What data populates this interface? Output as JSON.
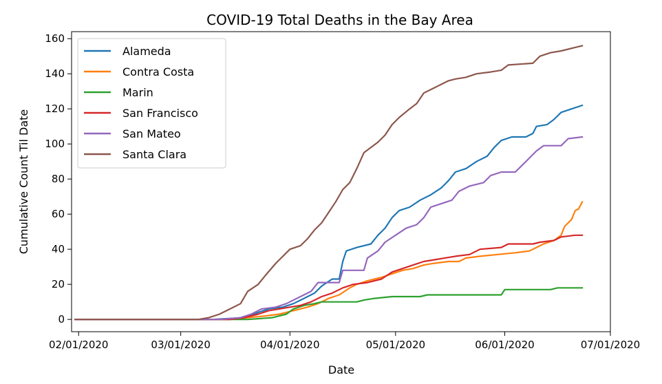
{
  "chart_data": {
    "type": "line",
    "title": "COVID-19 Total Deaths in the Bay Area",
    "xlabel": "Date",
    "ylabel": "Cumulative Count Til Date",
    "x_range": [
      "2020-01-30",
      "2020-07-01"
    ],
    "ylim": [
      -7,
      164
    ],
    "x_ticks": [
      {
        "date": "2020-02-01",
        "label": "02/01/2020"
      },
      {
        "date": "2020-03-01",
        "label": "03/01/2020"
      },
      {
        "date": "2020-04-01",
        "label": "04/01/2020"
      },
      {
        "date": "2020-05-01",
        "label": "05/01/2020"
      },
      {
        "date": "2020-06-01",
        "label": "06/01/2020"
      },
      {
        "date": "2020-07-01",
        "label": "07/01/2020"
      }
    ],
    "y_ticks": [
      0,
      20,
      40,
      60,
      80,
      100,
      120,
      140,
      160
    ],
    "grid": false,
    "legend_position": "top-left",
    "series": [
      {
        "name": "Alameda",
        "color": "#1f77b4",
        "points": [
          [
            "2020-01-31",
            0
          ],
          [
            "2020-03-10",
            0
          ],
          [
            "2020-03-19",
            1
          ],
          [
            "2020-03-23",
            4
          ],
          [
            "2020-03-26",
            6
          ],
          [
            "2020-03-30",
            7
          ],
          [
            "2020-04-02",
            9
          ],
          [
            "2020-04-05",
            12
          ],
          [
            "2020-04-08",
            15
          ],
          [
            "2020-04-10",
            19
          ],
          [
            "2020-04-13",
            23
          ],
          [
            "2020-04-15",
            23
          ],
          [
            "2020-04-16",
            33
          ],
          [
            "2020-04-17",
            39
          ],
          [
            "2020-04-20",
            41
          ],
          [
            "2020-04-24",
            43
          ],
          [
            "2020-04-26",
            48
          ],
          [
            "2020-04-28",
            52
          ],
          [
            "2020-04-30",
            58
          ],
          [
            "2020-05-02",
            62
          ],
          [
            "2020-05-05",
            64
          ],
          [
            "2020-05-08",
            68
          ],
          [
            "2020-05-11",
            71
          ],
          [
            "2020-05-14",
            75
          ],
          [
            "2020-05-16",
            79
          ],
          [
            "2020-05-18",
            84
          ],
          [
            "2020-05-21",
            86
          ],
          [
            "2020-05-24",
            90
          ],
          [
            "2020-05-27",
            93
          ],
          [
            "2020-05-29",
            98
          ],
          [
            "2020-05-31",
            102
          ],
          [
            "2020-06-03",
            104
          ],
          [
            "2020-06-07",
            104
          ],
          [
            "2020-06-09",
            106
          ],
          [
            "2020-06-10",
            110
          ],
          [
            "2020-06-13",
            111
          ],
          [
            "2020-06-15",
            114
          ],
          [
            "2020-06-17",
            118
          ],
          [
            "2020-06-20",
            120
          ],
          [
            "2020-06-23",
            122
          ]
        ]
      },
      {
        "name": "Contra Costa",
        "color": "#ff7f0e",
        "points": [
          [
            "2020-01-31",
            0
          ],
          [
            "2020-03-15",
            0
          ],
          [
            "2020-03-25",
            2
          ],
          [
            "2020-03-29",
            3
          ],
          [
            "2020-04-02",
            5
          ],
          [
            "2020-04-06",
            7
          ],
          [
            "2020-04-09",
            9
          ],
          [
            "2020-04-12",
            12
          ],
          [
            "2020-04-15",
            14
          ],
          [
            "2020-04-18",
            18
          ],
          [
            "2020-04-20",
            20
          ],
          [
            "2020-04-23",
            22
          ],
          [
            "2020-04-27",
            24
          ],
          [
            "2020-04-30",
            26
          ],
          [
            "2020-05-03",
            28
          ],
          [
            "2020-05-06",
            29
          ],
          [
            "2020-05-09",
            31
          ],
          [
            "2020-05-12",
            32
          ],
          [
            "2020-05-16",
            33
          ],
          [
            "2020-05-19",
            33
          ],
          [
            "2020-05-21",
            35
          ],
          [
            "2020-05-25",
            36
          ],
          [
            "2020-05-30",
            37
          ],
          [
            "2020-06-04",
            38
          ],
          [
            "2020-06-08",
            39
          ],
          [
            "2020-06-10",
            41
          ],
          [
            "2020-06-12",
            43
          ],
          [
            "2020-06-15",
            45
          ],
          [
            "2020-06-17",
            48
          ],
          [
            "2020-06-18",
            53
          ],
          [
            "2020-06-20",
            57
          ],
          [
            "2020-06-21",
            62
          ],
          [
            "2020-06-22",
            63
          ],
          [
            "2020-06-23",
            67
          ]
        ]
      },
      {
        "name": "Marin",
        "color": "#2ca02c",
        "points": [
          [
            "2020-01-31",
            0
          ],
          [
            "2020-03-20",
            0
          ],
          [
            "2020-03-27",
            1
          ],
          [
            "2020-03-31",
            3
          ],
          [
            "2020-04-02",
            6
          ],
          [
            "2020-04-05",
            8
          ],
          [
            "2020-04-08",
            9
          ],
          [
            "2020-04-10",
            10
          ],
          [
            "2020-04-20",
            10
          ],
          [
            "2020-04-22",
            11
          ],
          [
            "2020-04-25",
            12
          ],
          [
            "2020-04-30",
            13
          ],
          [
            "2020-05-08",
            13
          ],
          [
            "2020-05-10",
            14
          ],
          [
            "2020-05-31",
            14
          ],
          [
            "2020-06-01",
            17
          ],
          [
            "2020-06-14",
            17
          ],
          [
            "2020-06-16",
            18
          ],
          [
            "2020-06-23",
            18
          ]
        ]
      },
      {
        "name": "San Francisco",
        "color": "#d62728",
        "points": [
          [
            "2020-01-31",
            0
          ],
          [
            "2020-03-15",
            0
          ],
          [
            "2020-03-19",
            1
          ],
          [
            "2020-03-23",
            3
          ],
          [
            "2020-03-26",
            5
          ],
          [
            "2020-03-29",
            6
          ],
          [
            "2020-04-01",
            7
          ],
          [
            "2020-04-04",
            8
          ],
          [
            "2020-04-07",
            10
          ],
          [
            "2020-04-10",
            13
          ],
          [
            "2020-04-13",
            15
          ],
          [
            "2020-04-16",
            18
          ],
          [
            "2020-04-19",
            20
          ],
          [
            "2020-04-23",
            21
          ],
          [
            "2020-04-27",
            23
          ],
          [
            "2020-04-30",
            27
          ],
          [
            "2020-05-03",
            29
          ],
          [
            "2020-05-06",
            31
          ],
          [
            "2020-05-09",
            33
          ],
          [
            "2020-05-12",
            34
          ],
          [
            "2020-05-15",
            35
          ],
          [
            "2020-05-18",
            36
          ],
          [
            "2020-05-22",
            37
          ],
          [
            "2020-05-25",
            40
          ],
          [
            "2020-05-31",
            41
          ],
          [
            "2020-06-02",
            43
          ],
          [
            "2020-06-09",
            43
          ],
          [
            "2020-06-11",
            44
          ],
          [
            "2020-06-15",
            45
          ],
          [
            "2020-06-17",
            47
          ],
          [
            "2020-06-21",
            48
          ],
          [
            "2020-06-23",
            48
          ]
        ]
      },
      {
        "name": "San Mateo",
        "color": "#9467bd",
        "points": [
          [
            "2020-01-31",
            0
          ],
          [
            "2020-03-12",
            0
          ],
          [
            "2020-03-18",
            1
          ],
          [
            "2020-03-21",
            3
          ],
          [
            "2020-03-24",
            6
          ],
          [
            "2020-03-28",
            7
          ],
          [
            "2020-03-31",
            9
          ],
          [
            "2020-04-04",
            13
          ],
          [
            "2020-04-07",
            16
          ],
          [
            "2020-04-09",
            21
          ],
          [
            "2020-04-15",
            21
          ],
          [
            "2020-04-16",
            28
          ],
          [
            "2020-04-22",
            28
          ],
          [
            "2020-04-23",
            35
          ],
          [
            "2020-04-26",
            39
          ],
          [
            "2020-04-28",
            44
          ],
          [
            "2020-05-01",
            48
          ],
          [
            "2020-05-04",
            52
          ],
          [
            "2020-05-07",
            54
          ],
          [
            "2020-05-09",
            58
          ],
          [
            "2020-05-11",
            64
          ],
          [
            "2020-05-14",
            66
          ],
          [
            "2020-05-17",
            68
          ],
          [
            "2020-05-19",
            73
          ],
          [
            "2020-05-22",
            76
          ],
          [
            "2020-05-26",
            78
          ],
          [
            "2020-05-28",
            82
          ],
          [
            "2020-05-31",
            84
          ],
          [
            "2020-06-04",
            84
          ],
          [
            "2020-06-06",
            88
          ],
          [
            "2020-06-08",
            92
          ],
          [
            "2020-06-10",
            96
          ],
          [
            "2020-06-12",
            99
          ],
          [
            "2020-06-17",
            99
          ],
          [
            "2020-06-19",
            103
          ],
          [
            "2020-06-23",
            104
          ]
        ]
      },
      {
        "name": "Santa Clara",
        "color": "#8c564b",
        "points": [
          [
            "2020-01-31",
            0
          ],
          [
            "2020-03-06",
            0
          ],
          [
            "2020-03-09",
            1
          ],
          [
            "2020-03-12",
            3
          ],
          [
            "2020-03-15",
            6
          ],
          [
            "2020-03-18",
            9
          ],
          [
            "2020-03-20",
            16
          ],
          [
            "2020-03-23",
            20
          ],
          [
            "2020-03-25",
            25
          ],
          [
            "2020-03-28",
            32
          ],
          [
            "2020-03-30",
            36
          ],
          [
            "2020-04-01",
            40
          ],
          [
            "2020-04-04",
            42
          ],
          [
            "2020-04-06",
            46
          ],
          [
            "2020-04-08",
            51
          ],
          [
            "2020-04-10",
            55
          ],
          [
            "2020-04-12",
            61
          ],
          [
            "2020-04-14",
            67
          ],
          [
            "2020-04-16",
            74
          ],
          [
            "2020-04-18",
            78
          ],
          [
            "2020-04-20",
            86
          ],
          [
            "2020-04-22",
            95
          ],
          [
            "2020-04-24",
            98
          ],
          [
            "2020-04-26",
            101
          ],
          [
            "2020-04-28",
            105
          ],
          [
            "2020-04-30",
            111
          ],
          [
            "2020-05-02",
            115
          ],
          [
            "2020-05-05",
            120
          ],
          [
            "2020-05-07",
            123
          ],
          [
            "2020-05-09",
            129
          ],
          [
            "2020-05-12",
            132
          ],
          [
            "2020-05-14",
            134
          ],
          [
            "2020-05-16",
            136
          ],
          [
            "2020-05-18",
            137
          ],
          [
            "2020-05-21",
            138
          ],
          [
            "2020-05-24",
            140
          ],
          [
            "2020-05-28",
            141
          ],
          [
            "2020-05-31",
            142
          ],
          [
            "2020-06-02",
            145
          ],
          [
            "2020-06-09",
            146
          ],
          [
            "2020-06-11",
            150
          ],
          [
            "2020-06-14",
            152
          ],
          [
            "2020-06-17",
            153
          ],
          [
            "2020-06-21",
            155
          ],
          [
            "2020-06-23",
            156
          ]
        ]
      }
    ]
  }
}
